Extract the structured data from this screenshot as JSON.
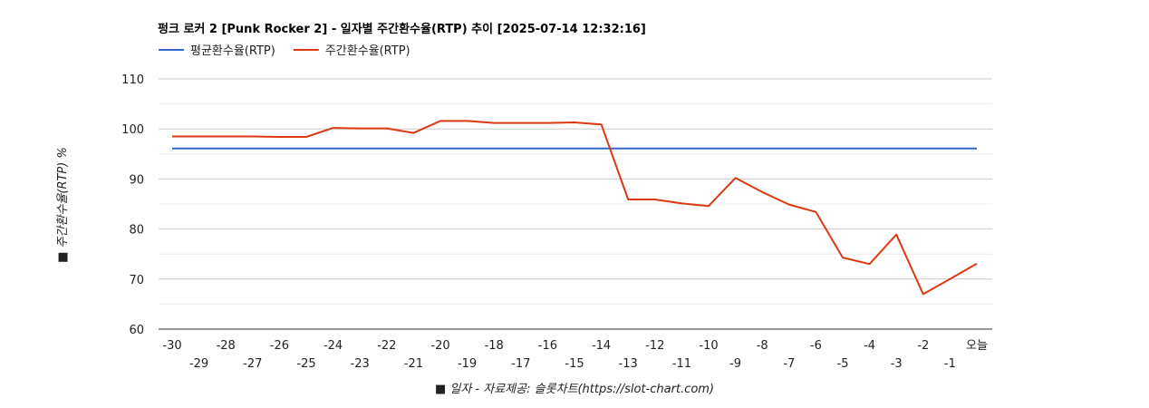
{
  "chart_data": {
    "type": "line",
    "title": "펑크 로커 2 [Punk Rocker 2] - 일자별 주간환수율(RTP) 추이 [2025-07-14 12:32:16]",
    "xlabel": "■ 일자 - 자료제공: 슬롯차트(https://slot-chart.com)",
    "ylabel": "■ 주간환수율(RTP) %",
    "ylim": [
      60,
      110
    ],
    "yticks": [
      "60",
      "70",
      "80",
      "90",
      "100",
      "110"
    ],
    "grid": true,
    "legend_position": "top-left",
    "categories": [
      "-30",
      "-29",
      "-28",
      "-27",
      "-26",
      "-25",
      "-24",
      "-23",
      "-22",
      "-21",
      "-20",
      "-19",
      "-18",
      "-17",
      "-16",
      "-15",
      "-14",
      "-13",
      "-12",
      "-11",
      "-10",
      "-9",
      "-8",
      "-7",
      "-6",
      "-5",
      "-4",
      "-3",
      "-2",
      "-1",
      "오늘"
    ],
    "series": [
      {
        "name": "평균환수율(RTP)",
        "color": "#3366cc",
        "values": [
          96.1,
          96.1,
          96.1,
          96.1,
          96.1,
          96.1,
          96.1,
          96.1,
          96.1,
          96.1,
          96.1,
          96.1,
          96.1,
          96.1,
          96.1,
          96.1,
          96.1,
          96.1,
          96.1,
          96.1,
          96.1,
          96.1,
          96.1,
          96.1,
          96.1,
          96.1,
          96.1,
          96.1,
          96.1,
          96.1,
          96.1
        ]
      },
      {
        "name": "주간환수율(RTP)",
        "color": "#dc3912",
        "values": [
          98.5,
          98.5,
          98.5,
          98.5,
          98.4,
          98.4,
          100.2,
          100.1,
          100.1,
          99.2,
          101.6,
          101.6,
          101.2,
          101.2,
          101.2,
          101.3,
          100.9,
          85.9,
          85.9,
          85.1,
          84.6,
          90.2,
          87.4,
          84.9,
          83.4,
          74.3,
          73.0,
          78.9,
          67.0,
          70.0,
          73.1
        ]
      }
    ]
  }
}
